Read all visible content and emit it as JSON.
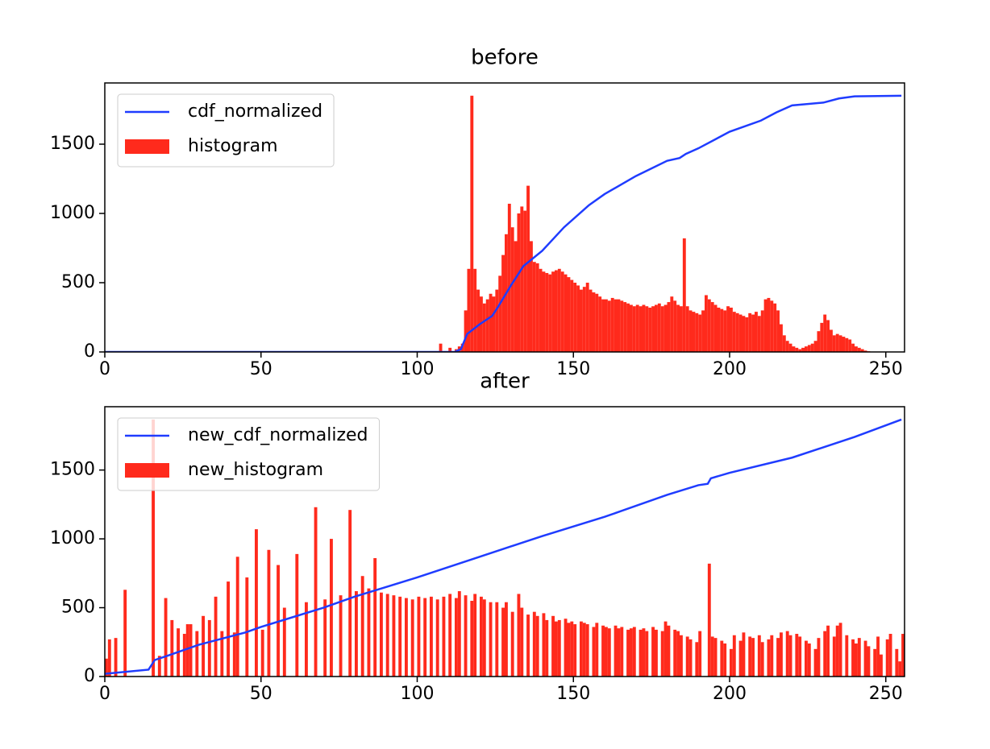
{
  "chart_data": [
    {
      "type": "combo",
      "title": "before",
      "legend": "upper left",
      "xlim": [
        0,
        256
      ],
      "ylim": [
        0,
        1942
      ],
      "xticks": [
        0,
        50,
        100,
        150,
        200,
        250
      ],
      "yticks": [
        0,
        500,
        1000,
        1500
      ],
      "series": [
        {
          "name": "cdf_normalized",
          "type": "line",
          "color": "#1f3cff",
          "x": [
            0,
            112,
            114,
            116,
            120,
            124,
            126,
            130,
            134,
            140,
            147,
            155,
            160,
            170,
            180,
            184,
            186,
            190,
            200,
            210,
            215,
            220,
            230,
            235,
            240,
            255
          ],
          "values": [
            0,
            0,
            20,
            130,
            200,
            260,
            330,
            480,
            620,
            730,
            900,
            1060,
            1140,
            1270,
            1380,
            1400,
            1430,
            1470,
            1590,
            1670,
            1730,
            1780,
            1800,
            1830,
            1845,
            1850
          ]
        },
        {
          "name": "histogram",
          "type": "histogram",
          "color": "#ff2a1c",
          "bins": [
            0,
            1,
            2,
            3,
            4,
            5,
            6,
            7,
            8,
            9,
            10,
            11,
            12,
            13,
            14,
            15,
            16,
            17,
            18,
            19,
            20,
            21,
            22,
            23,
            24,
            25,
            26,
            27,
            28,
            29,
            30,
            31,
            32,
            33,
            34,
            35,
            36,
            37,
            38,
            39,
            40,
            41,
            42,
            43,
            44,
            45,
            46,
            47,
            48,
            49,
            50,
            51,
            52,
            53,
            54,
            55,
            56,
            57,
            58,
            59,
            60,
            61,
            62,
            63,
            64,
            65,
            66,
            67,
            68,
            69,
            70,
            71,
            72,
            73,
            74,
            75,
            76,
            77,
            78,
            79,
            80,
            81,
            82,
            83,
            84,
            85,
            86,
            87,
            88,
            89,
            90,
            91,
            92,
            93,
            94,
            95,
            96,
            97,
            98,
            99,
            100,
            101,
            102,
            103,
            104,
            105,
            106,
            107,
            108,
            109,
            110,
            111,
            112,
            113,
            114,
            115,
            116,
            117,
            118,
            119,
            120,
            121,
            122,
            123,
            124,
            125,
            126,
            127,
            128,
            129,
            130,
            131,
            132,
            133,
            134,
            135,
            136,
            137,
            138,
            139,
            140,
            141,
            142,
            143,
            144,
            145,
            146,
            147,
            148,
            149,
            150,
            151,
            152,
            153,
            154,
            155,
            156,
            157,
            158,
            159,
            160,
            161,
            162,
            163,
            164,
            165,
            166,
            167,
            168,
            169,
            170,
            171,
            172,
            173,
            174,
            175,
            176,
            177,
            178,
            179,
            180,
            181,
            182,
            183,
            184,
            185,
            186,
            187,
            188,
            189,
            190,
            191,
            192,
            193,
            194,
            195,
            196,
            197,
            198,
            199,
            200,
            201,
            202,
            203,
            204,
            205,
            206,
            207,
            208,
            209,
            210,
            211,
            212,
            213,
            214,
            215,
            216,
            217,
            218,
            219,
            220,
            221,
            222,
            223,
            224,
            225,
            226,
            227,
            228,
            229,
            230,
            231,
            232,
            233,
            234,
            235,
            236,
            237,
            238,
            239,
            240,
            241,
            242,
            243,
            244,
            245,
            246,
            247,
            248,
            249,
            250,
            251,
            252,
            253,
            254,
            255,
            256
          ],
          "values": [
            0,
            0,
            0,
            0,
            0,
            0,
            0,
            0,
            0,
            0,
            0,
            0,
            0,
            0,
            0,
            0,
            0,
            0,
            0,
            0,
            0,
            0,
            0,
            0,
            0,
            0,
            0,
            0,
            0,
            0,
            0,
            0,
            0,
            0,
            0,
            0,
            0,
            0,
            0,
            0,
            0,
            0,
            0,
            0,
            0,
            0,
            0,
            0,
            0,
            0,
            0,
            0,
            0,
            0,
            0,
            0,
            0,
            0,
            0,
            0,
            0,
            0,
            0,
            0,
            0,
            0,
            0,
            0,
            0,
            0,
            0,
            0,
            0,
            0,
            0,
            0,
            0,
            0,
            0,
            0,
            0,
            0,
            0,
            0,
            0,
            0,
            0,
            0,
            0,
            0,
            0,
            0,
            0,
            0,
            0,
            0,
            0,
            0,
            0,
            0,
            0,
            0,
            0,
            0,
            0,
            0,
            0,
            60,
            0,
            0,
            30,
            0,
            20,
            40,
            60,
            300,
            600,
            1850,
            600,
            450,
            400,
            350,
            380,
            420,
            400,
            450,
            550,
            700,
            850,
            1070,
            900,
            800,
            1000,
            1050,
            1020,
            1200,
            800,
            650,
            640,
            600,
            580,
            570,
            560,
            580,
            590,
            600,
            580,
            560,
            540,
            520,
            500,
            480,
            450,
            470,
            500,
            450,
            430,
            420,
            400,
            380,
            380,
            370,
            390,
            380,
            380,
            370,
            360,
            350,
            340,
            330,
            340,
            330,
            340,
            330,
            320,
            330,
            340,
            350,
            330,
            340,
            360,
            400,
            370,
            340,
            330,
            820,
            330,
            300,
            290,
            280,
            270,
            300,
            410,
            380,
            360,
            340,
            320,
            310,
            300,
            330,
            320,
            290,
            280,
            270,
            260,
            250,
            280,
            270,
            290,
            260,
            300,
            380,
            390,
            370,
            350,
            300,
            200,
            120,
            80,
            60,
            40,
            30,
            20,
            30,
            40,
            50,
            60,
            80,
            150,
            210,
            270,
            230,
            160,
            120,
            130,
            120,
            110,
            100,
            90,
            60,
            40,
            30,
            20,
            10,
            5,
            0,
            0,
            0,
            0,
            0,
            0,
            0,
            0,
            0,
            0,
            0
          ]
        }
      ]
    },
    {
      "type": "combo",
      "title": "after",
      "legend": "upper left",
      "xlim": [
        0,
        256
      ],
      "ylim": [
        0,
        1960
      ],
      "xticks": [
        0,
        50,
        100,
        150,
        200,
        250
      ],
      "yticks": [
        0,
        500,
        1000,
        1500
      ],
      "series": [
        {
          "name": "new_cdf_normalized",
          "type": "line",
          "color": "#1f3cff",
          "x": [
            0,
            14,
            16,
            20,
            30,
            40,
            45,
            50,
            60,
            70,
            80,
            90,
            100,
            120,
            140,
            160,
            180,
            190,
            193,
            194,
            200,
            220,
            240,
            255
          ],
          "values": [
            20,
            50,
            120,
            150,
            230,
            290,
            320,
            360,
            430,
            500,
            580,
            650,
            720,
            870,
            1020,
            1160,
            1320,
            1390,
            1400,
            1440,
            1480,
            1590,
            1740,
            1867
          ]
        },
        {
          "name": "new_histogram",
          "type": "histogram",
          "color": "#ff2a1c",
          "bins": [
            0,
            1,
            2,
            3,
            4,
            5,
            6,
            7,
            8,
            9,
            10,
            11,
            12,
            13,
            14,
            15,
            16,
            17,
            18,
            19,
            20,
            21,
            22,
            23,
            24,
            25,
            26,
            27,
            28,
            29,
            30,
            31,
            32,
            33,
            34,
            35,
            36,
            37,
            38,
            39,
            40,
            41,
            42,
            43,
            44,
            45,
            46,
            47,
            48,
            49,
            50,
            51,
            52,
            53,
            54,
            55,
            56,
            57,
            58,
            59,
            60,
            61,
            62,
            63,
            64,
            65,
            66,
            67,
            68,
            69,
            70,
            71,
            72,
            73,
            74,
            75,
            76,
            77,
            78,
            79,
            80,
            81,
            82,
            83,
            84,
            85,
            86,
            87,
            88,
            89,
            90,
            91,
            92,
            93,
            94,
            95,
            96,
            97,
            98,
            99,
            100,
            101,
            102,
            103,
            104,
            105,
            106,
            107,
            108,
            109,
            110,
            111,
            112,
            113,
            114,
            115,
            116,
            117,
            118,
            119,
            120,
            121,
            122,
            123,
            124,
            125,
            126,
            127,
            128,
            129,
            130,
            131,
            132,
            133,
            134,
            135,
            136,
            137,
            138,
            139,
            140,
            141,
            142,
            143,
            144,
            145,
            146,
            147,
            148,
            149,
            150,
            151,
            152,
            153,
            154,
            155,
            156,
            157,
            158,
            159,
            160,
            161,
            162,
            163,
            164,
            165,
            166,
            167,
            168,
            169,
            170,
            171,
            172,
            173,
            174,
            175,
            176,
            177,
            178,
            179,
            180,
            181,
            182,
            183,
            184,
            185,
            186,
            187,
            188,
            189,
            190,
            191,
            192,
            193,
            194,
            195,
            196,
            197,
            198,
            199,
            200,
            201,
            202,
            203,
            204,
            205,
            206,
            207,
            208,
            209,
            210,
            211,
            212,
            213,
            214,
            215,
            216,
            217,
            218,
            219,
            220,
            221,
            222,
            223,
            224,
            225,
            226,
            227,
            228,
            229,
            230,
            231,
            232,
            233,
            234,
            235,
            236,
            237,
            238,
            239,
            240,
            241,
            242,
            243,
            244,
            245,
            246,
            247,
            248,
            249,
            250,
            251,
            252,
            253,
            254,
            255,
            256
          ],
          "values": [
            130,
            270,
            0,
            280,
            0,
            0,
            630,
            0,
            0,
            0,
            0,
            0,
            0,
            0,
            0,
            1867,
            0,
            150,
            0,
            570,
            0,
            410,
            0,
            350,
            0,
            310,
            380,
            380,
            0,
            330,
            0,
            440,
            0,
            410,
            0,
            580,
            0,
            330,
            0,
            690,
            0,
            320,
            870,
            0,
            0,
            720,
            0,
            0,
            1070,
            0,
            340,
            0,
            920,
            0,
            0,
            810,
            0,
            500,
            0,
            0,
            0,
            890,
            0,
            0,
            540,
            0,
            0,
            1230,
            0,
            0,
            560,
            0,
            1000,
            0,
            0,
            590,
            0,
            0,
            1210,
            0,
            620,
            0,
            730,
            0,
            640,
            0,
            860,
            0,
            610,
            0,
            600,
            0,
            590,
            0,
            580,
            0,
            570,
            0,
            560,
            0,
            580,
            0,
            570,
            0,
            580,
            0,
            560,
            0,
            580,
            0,
            600,
            0,
            570,
            620,
            0,
            590,
            0,
            550,
            600,
            0,
            580,
            560,
            0,
            540,
            0,
            540,
            0,
            500,
            540,
            0,
            470,
            0,
            600,
            500,
            0,
            450,
            0,
            470,
            440,
            0,
            460,
            410,
            0,
            440,
            400,
            410,
            0,
            420,
            390,
            400,
            380,
            0,
            400,
            390,
            380,
            0,
            360,
            390,
            0,
            370,
            360,
            350,
            0,
            370,
            350,
            360,
            0,
            340,
            350,
            360,
            0,
            340,
            350,
            330,
            0,
            360,
            340,
            0,
            330,
            400,
            370,
            0,
            340,
            330,
            300,
            0,
            290,
            270,
            0,
            250,
            330,
            0,
            0,
            820,
            290,
            280,
            0,
            260,
            240,
            0,
            200,
            300,
            0,
            260,
            320,
            0,
            290,
            280,
            0,
            300,
            250,
            0,
            270,
            300,
            0,
            280,
            320,
            0,
            330,
            300,
            0,
            310,
            290,
            0,
            260,
            240,
            0,
            200,
            280,
            0,
            330,
            370,
            0,
            290,
            370,
            390,
            0,
            300,
            0,
            270,
            240,
            280,
            0,
            260,
            220,
            0,
            200,
            290,
            160,
            0,
            270,
            310,
            0,
            200,
            110,
            310
          ]
        }
      ]
    }
  ]
}
